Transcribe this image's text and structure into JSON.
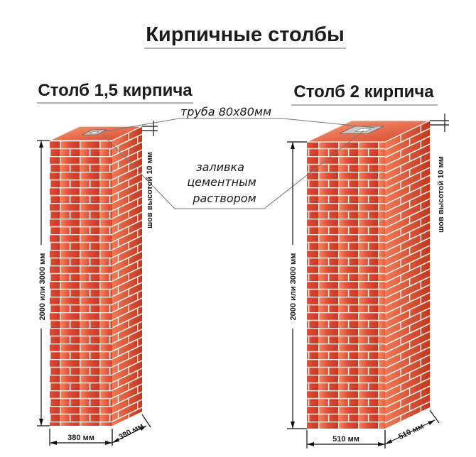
{
  "title": "Кирпичные столбы",
  "pillar_left": {
    "heading": "Столб 1,5 кирпича",
    "height_label": "2000 или 3000 мм",
    "width_label": "380 мм",
    "depth_label": "380 мм"
  },
  "pillar_right": {
    "heading": "Столб 2 кирпича",
    "height_label": "2000 или 3000 мм",
    "width_label": "510 мм",
    "depth_label": "510 мм"
  },
  "callouts": {
    "pipe": "труба 80х80мм",
    "fill_line1": "заливка",
    "fill_line2": "цементным",
    "fill_line3": "раствором",
    "seam_left": "шов высотой 10 мм",
    "seam_right": "шов высотой 10 мм"
  },
  "colors": {
    "brick_front": "#d8432a",
    "brick_front_light": "#ef7a55",
    "brick_side": "#b8301c",
    "mortar": "#f3ece6",
    "pipe": "#c9c9c9"
  }
}
